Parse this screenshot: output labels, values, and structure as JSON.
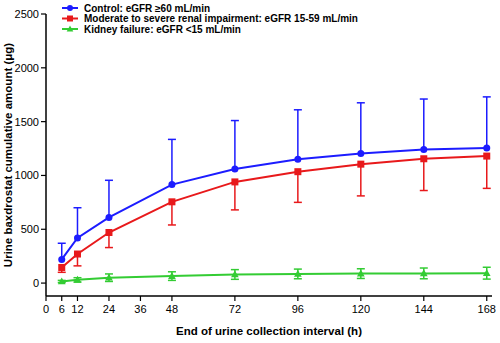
{
  "chart_data": {
    "type": "line",
    "x_label": "End of urine collection interval (h)",
    "y_label": "Urine baxdrostat cumulative amount (μg)",
    "x": [
      6,
      12,
      24,
      48,
      72,
      96,
      120,
      144,
      168
    ],
    "xlim": [
      0,
      170
    ],
    "xticks": [
      0,
      6,
      12,
      24,
      36,
      48,
      72,
      96,
      120,
      144,
      168
    ],
    "ylim": [
      -120,
      2500
    ],
    "yticks": [
      0,
      500,
      1000,
      1500,
      2000,
      2500
    ],
    "grid": false,
    "legend": "top-left",
    "series": [
      {
        "name": "Control: eGFR ≥60 mL/min",
        "color": "#1c1cff",
        "marker": "circle",
        "values": [
          220,
          420,
          610,
          915,
          1060,
          1150,
          1205,
          1240,
          1255
        ],
        "error_plus": [
          150,
          280,
          345,
          420,
          450,
          460,
          470,
          470,
          475
        ]
      },
      {
        "name": "Moderate to severe  renal impairment: eGFR 15-59 mL/min",
        "color": "#e8191b",
        "marker": "square",
        "values": [
          145,
          270,
          470,
          755,
          940,
          1035,
          1105,
          1155,
          1180
        ],
        "error_minus": [
          45,
          110,
          140,
          215,
          260,
          285,
          295,
          295,
          300
        ]
      },
      {
        "name": "Kidney failure: eGFR <15 mL/min",
        "color": "#33cc33",
        "marker": "triangle",
        "values": [
          15,
          30,
          50,
          65,
          80,
          85,
          88,
          90,
          92
        ],
        "error_plus": [
          10,
          20,
          35,
          40,
          45,
          45,
          45,
          50,
          55
        ],
        "error_minus": [
          10,
          20,
          35,
          40,
          45,
          45,
          45,
          50,
          55
        ]
      }
    ]
  }
}
